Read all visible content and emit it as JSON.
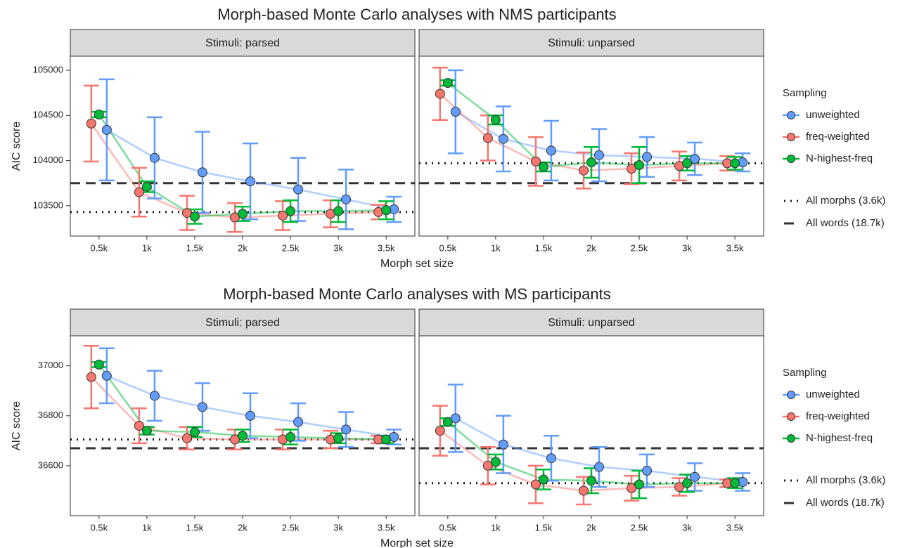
{
  "chart_data": [
    {
      "type": "errorbar-line",
      "title": "Morph-based Monte Carlo analyses with NMS participants",
      "xlabel": "Morph set size",
      "ylabel": "AIC score",
      "categories": [
        "0.5k",
        "1k",
        "1.5k",
        "2k",
        "2.5k",
        "3k",
        "3.5k"
      ],
      "ylim": [
        103164,
        105156
      ],
      "yticks": [
        103500,
        104000,
        104500,
        105000
      ],
      "grid": false,
      "legend_title": "Sampling",
      "series": [
        {
          "name": "unweighted",
          "color": "#619CFF"
        },
        {
          "name": "freq-weighted",
          "color": "#F8766D"
        },
        {
          "name": "N-highest-freq",
          "color": "#00BA38"
        }
      ],
      "reference_lines": [
        {
          "name": "All morphs (3.6k)",
          "style": "dotted"
        },
        {
          "name": "All words (18.7k)",
          "style": "dashed"
        }
      ],
      "panels": [
        {
          "title": "Stimuli: parsed",
          "reference_values": [
            103430,
            103750
          ],
          "series": [
            {
              "values": [
                104340,
                104030,
                103870,
                103770,
                103680,
                103570,
                103460
              ],
              "errors": [
                560,
                450,
                450,
                420,
                350,
                330,
                140
              ]
            },
            {
              "values": [
                104410,
                103650,
                103420,
                103370,
                103390,
                103410,
                103430
              ],
              "errors": [
                420,
                270,
                190,
                160,
                160,
                150,
                80
              ]
            },
            {
              "values": [
                104510,
                103710,
                103380,
                103410,
                103440,
                103440,
                103450
              ],
              "errors": [
                30,
                60,
                80,
                80,
                120,
                120,
                100
              ]
            }
          ]
        },
        {
          "title": "Stimuli: unparsed",
          "reference_values": [
            103970,
            103750
          ],
          "series": [
            {
              "values": [
                104540,
                104240,
                104110,
                104060,
                104040,
                104020,
                103980
              ],
              "errors": [
                460,
                360,
                330,
                290,
                220,
                180,
                100
              ]
            },
            {
              "values": [
                104740,
                104250,
                103990,
                103890,
                103910,
                103940,
                103970
              ],
              "errors": [
                290,
                250,
                270,
                200,
                170,
                160,
                80
              ]
            },
            {
              "values": [
                104860,
                104450,
                103930,
                103980,
                103950,
                103970,
                103970
              ],
              "errors": [
                30,
                50,
                50,
                170,
                200,
                80,
                70
              ]
            }
          ]
        }
      ]
    },
    {
      "type": "errorbar-line",
      "title": "Morph-based Monte Carlo analyses with MS participants",
      "xlabel": "Morph set size",
      "ylabel": "AIC score",
      "categories": [
        "0.5k",
        "1k",
        "1.5k",
        "2k",
        "2.5k",
        "3k",
        "3.5k"
      ],
      "ylim": [
        36400,
        37120
      ],
      "yticks": [
        36600,
        36800,
        37000
      ],
      "grid": false,
      "legend_title": "Sampling",
      "series": [
        {
          "name": "unweighted",
          "color": "#619CFF"
        },
        {
          "name": "freq-weighted",
          "color": "#F8766D"
        },
        {
          "name": "N-highest-freq",
          "color": "#00BA38"
        }
      ],
      "reference_lines": [
        {
          "name": "All morphs (3.6k)",
          "style": "dotted"
        },
        {
          "name": "All words (18.7k)",
          "style": "dashed"
        }
      ],
      "panels": [
        {
          "title": "Stimuli: parsed",
          "reference_values": [
            36705,
            36670
          ],
          "series": [
            {
              "values": [
                36960,
                36880,
                36835,
                36800,
                36775,
                36745,
                36715
              ],
              "errors": [
                110,
                100,
                95,
                90,
                75,
                70,
                30
              ]
            },
            {
              "values": [
                36955,
                36760,
                36710,
                36705,
                36705,
                36705,
                36705
              ],
              "errors": [
                125,
                70,
                45,
                40,
                40,
                35,
                15
              ]
            },
            {
              "values": [
                37005,
                36740,
                36735,
                36720,
                36715,
                36710,
                36705
              ],
              "errors": [
                10,
                15,
                20,
                25,
                30,
                20,
                15
              ]
            }
          ]
        },
        {
          "title": "Stimuli: unparsed",
          "reference_values": [
            36530,
            36670
          ],
          "series": [
            {
              "values": [
                36790,
                36685,
                36630,
                36595,
                36580,
                36555,
                36535
              ],
              "errors": [
                135,
                115,
                90,
                80,
                65,
                55,
                35
              ]
            },
            {
              "values": [
                36740,
                36600,
                36525,
                36500,
                36510,
                36515,
                36530
              ],
              "errors": [
                100,
                75,
                75,
                55,
                50,
                35,
                15
              ]
            },
            {
              "values": [
                36775,
                36615,
                36545,
                36540,
                36525,
                36530,
                36530
              ],
              "errors": [
                15,
                30,
                40,
                50,
                55,
                35,
                20
              ]
            }
          ]
        }
      ]
    }
  ]
}
